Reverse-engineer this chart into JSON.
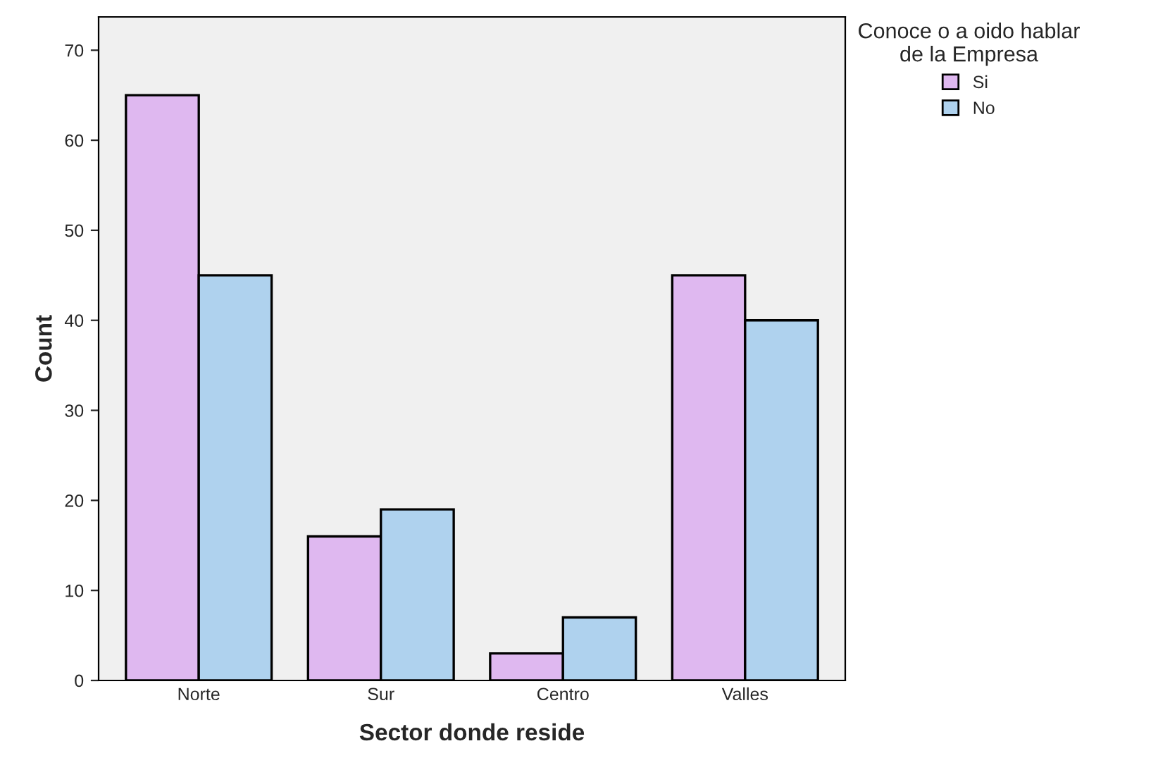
{
  "chart_data": {
    "type": "bar",
    "xlabel": "Sector donde reside",
    "ylabel": "Count",
    "legend_title": "Conoce o a oido hablar\nde la Empresa",
    "categories": [
      "Norte",
      "Sur",
      "Centro",
      "Valles"
    ],
    "series": [
      {
        "name": "Si",
        "color": "#dfb8f0",
        "values": [
          65,
          16,
          3,
          45
        ]
      },
      {
        "name": "No",
        "color": "#afd2ee",
        "values": [
          45,
          19,
          7,
          40
        ]
      }
    ],
    "ylim": [
      0,
      73.7
    ],
    "yticks": [
      0,
      10,
      20,
      30,
      40,
      50,
      60,
      70
    ],
    "grid": false,
    "legend": "top right"
  }
}
